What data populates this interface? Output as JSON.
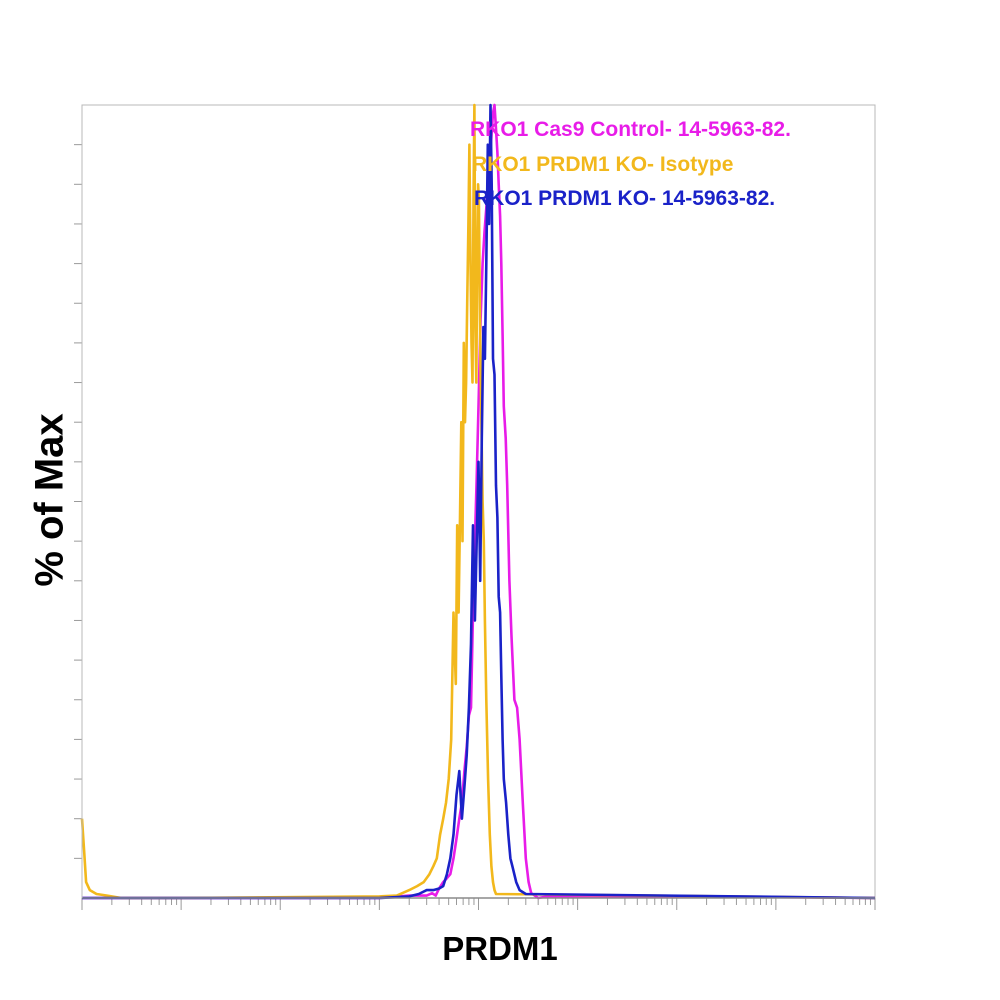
{
  "chart_data": {
    "type": "line",
    "title": "",
    "xlabel": "PRDM1",
    "ylabel": "% of Max",
    "xscale": "log",
    "xlim": [
      1,
      100000000
    ],
    "ylim": [
      0,
      100
    ],
    "grid": false,
    "legend_position": "top-right",
    "series": [
      {
        "name": "RKO1 Cas9 Control- 14-5963-82.",
        "color": "#e81ce8",
        "x": [
          1,
          1000,
          2000,
          3000,
          3400,
          3700,
          4000,
          4400,
          4800,
          5200,
          5600,
          6000,
          6400,
          6800,
          7200,
          7600,
          8000,
          8400,
          8800,
          9200,
          9600,
          10000,
          10500,
          11000,
          11500,
          12000,
          12500,
          13000,
          13500,
          14000,
          14500,
          15000,
          15500,
          16000,
          16500,
          17000,
          17500,
          18000,
          18800,
          19500,
          20500,
          21500,
          23000,
          24500,
          26000,
          28000,
          30000,
          32000,
          34000,
          37000,
          40000,
          50000,
          1000000,
          100000000
        ],
        "y": [
          0,
          0,
          0.3,
          0.3,
          0.6,
          0.3,
          1.2,
          2,
          2.5,
          3,
          5,
          7.5,
          10,
          12,
          16,
          19,
          23,
          24,
          36,
          45,
          53,
          62,
          73,
          80,
          84,
          87,
          91,
          93,
          96,
          99,
          100,
          97,
          94,
          90,
          86,
          80,
          71,
          62,
          58,
          52,
          40,
          33,
          25,
          24,
          20,
          12,
          5,
          2,
          0.6,
          0.3,
          0,
          0.2,
          0.2,
          0
        ]
      },
      {
        "name": "RKO1 PRDM1 KO- Isotype",
        "color": "#f2b81c",
        "x": [
          1,
          1.05,
          1.1,
          1.2,
          1.4,
          1.8,
          2.5,
          10,
          1000,
          1500,
          2000,
          2400,
          2800,
          3200,
          3500,
          3800,
          4100,
          4400,
          4700,
          5000,
          5300,
          5600,
          5900,
          6100,
          6300,
          6500,
          6700,
          6900,
          7100,
          7300,
          7500,
          7700,
          7900,
          8100,
          8300,
          8500,
          8700,
          8900,
          9100,
          9300,
          9500,
          9700,
          9900,
          10100,
          10400,
          10700,
          11000,
          11300,
          11600,
          12000,
          12500,
          13000,
          13500,
          14000,
          14500,
          15000,
          100000000
        ],
        "y": [
          10,
          6,
          2,
          1,
          0.5,
          0.3,
          0,
          0,
          0.2,
          0.3,
          1,
          1.5,
          2,
          3,
          4,
          5,
          8,
          10,
          12,
          15,
          20,
          36,
          27,
          47,
          36,
          48,
          60,
          45,
          70,
          60,
          65,
          75,
          85,
          95,
          80,
          70,
          65,
          88,
          100,
          72,
          65,
          80,
          90,
          88,
          70,
          60,
          50,
          45,
          35,
          25,
          15,
          8,
          4,
          2,
          1,
          0.5,
          0
        ]
      },
      {
        "name": "RKO1 PRDM1 KO- 14-5963-82.",
        "color": "#1a22c8",
        "x": [
          1,
          1000,
          2000,
          2500,
          3000,
          3500,
          4000,
          4400,
          4800,
          5200,
          5600,
          6000,
          6400,
          6800,
          7200,
          7600,
          8000,
          8400,
          8800,
          9200,
          9600,
          10000,
          10400,
          10800,
          11200,
          11600,
          12000,
          12400,
          12800,
          13200,
          13600,
          14000,
          14500,
          15000,
          15500,
          16000,
          16500,
          17000,
          17500,
          18000,
          19000,
          20000,
          21000,
          22000,
          24000,
          26000,
          30000,
          100000000
        ],
        "y": [
          0,
          0,
          0.2,
          0.5,
          1,
          1,
          1.2,
          1.5,
          3,
          5,
          8,
          13,
          16,
          10,
          14,
          18,
          24,
          32,
          47,
          35,
          45,
          55,
          40,
          58,
          72,
          68,
          80,
          95,
          85,
          100,
          90,
          68,
          66,
          52,
          48,
          38,
          36,
          28,
          20,
          15,
          12,
          8,
          5,
          4,
          2,
          1,
          0.5,
          0
        ]
      }
    ]
  }
}
